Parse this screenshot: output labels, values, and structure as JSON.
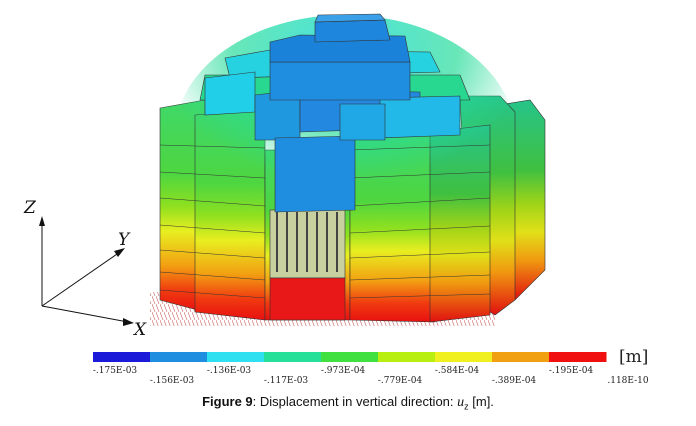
{
  "axes": {
    "z": "Z",
    "y": "Y",
    "x": "X"
  },
  "legend": {
    "unit": "[m]",
    "colors": [
      "#1a1ad8",
      "#1f8ee0",
      "#2ee0f0",
      "#26e09a",
      "#40e040",
      "#b8ee10",
      "#f0f020",
      "#f0a010",
      "#f01010"
    ],
    "labels_top": [
      "-.175E-03",
      "-.136E-03",
      "-.973E-04",
      "-.584E-04",
      "-.195E-04"
    ],
    "labels_bottom": [
      "-.156E-03",
      "-.117E-03",
      "-.779E-04",
      "-.389E-04",
      ".118E-10"
    ]
  },
  "caption": {
    "fig": "Figure 9",
    "text": ": Displacement in vertical direction: ",
    "var": "u",
    "sub": "z",
    "tail": " [m]."
  }
}
